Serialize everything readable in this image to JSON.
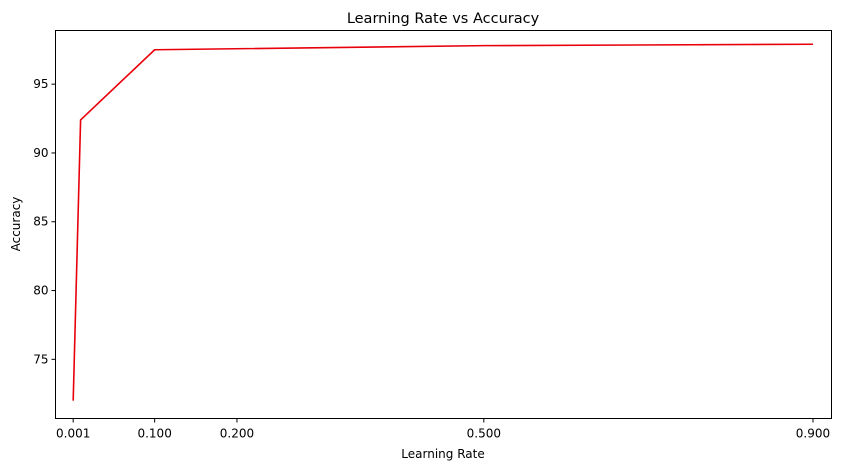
{
  "chart_data": {
    "type": "line",
    "title": "Learning Rate vs Accuracy",
    "xlabel": "Learning Rate",
    "ylabel": "Accuracy",
    "x_ticks": [
      0.001,
      0.1,
      0.2,
      0.5,
      0.9
    ],
    "x_tick_labels": [
      "0.001",
      "0.100",
      "0.200",
      "0.500",
      "0.900"
    ],
    "y_ticks": [
      75,
      80,
      85,
      90,
      95
    ],
    "y_tick_labels": [
      "75",
      "80",
      "85",
      "90",
      "95"
    ],
    "xlim": [
      -0.0205,
      0.9225
    ],
    "ylim": [
      70.7,
      98.9
    ],
    "grid": false,
    "series": [
      {
        "color": "#e8000b",
        "x": [
          0.001,
          0.01,
          0.1,
          0.5,
          0.9
        ],
        "y": [
          72.0,
          92.4,
          97.5,
          97.8,
          97.9
        ]
      }
    ]
  }
}
